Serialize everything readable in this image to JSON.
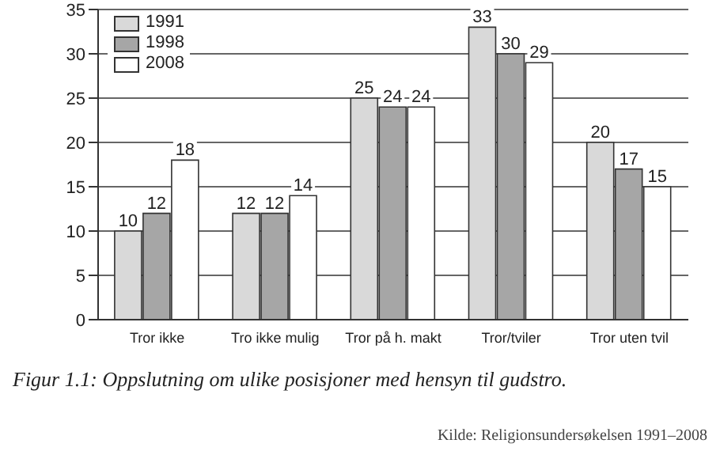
{
  "chart_data": {
    "type": "bar",
    "categories": [
      "Tror ikke",
      "Tro ikke mulig",
      "Tror på h. makt",
      "Tror/tviler",
      "Tror uten tvil"
    ],
    "series": [
      {
        "name": "1991",
        "color": "#d9d9d9",
        "values": [
          10,
          12,
          25,
          33,
          20
        ]
      },
      {
        "name": "1998",
        "color": "#a6a6a6",
        "values": [
          12,
          12,
          24,
          30,
          17
        ]
      },
      {
        "name": "2008",
        "color": "#ffffff",
        "values": [
          18,
          14,
          24,
          29,
          15
        ]
      }
    ],
    "ylim": [
      0,
      35
    ],
    "yticks": [
      0,
      5,
      10,
      15,
      20,
      25,
      30,
      35
    ],
    "grid": "y",
    "legend": "top left",
    "data_labels": true,
    "annotations": [
      "Figur 1.1: Oppslutning om ulike posisjoner med hensyn til gudstro.",
      "Kilde: Religionsundersøkelsen 1991–2008"
    ]
  }
}
